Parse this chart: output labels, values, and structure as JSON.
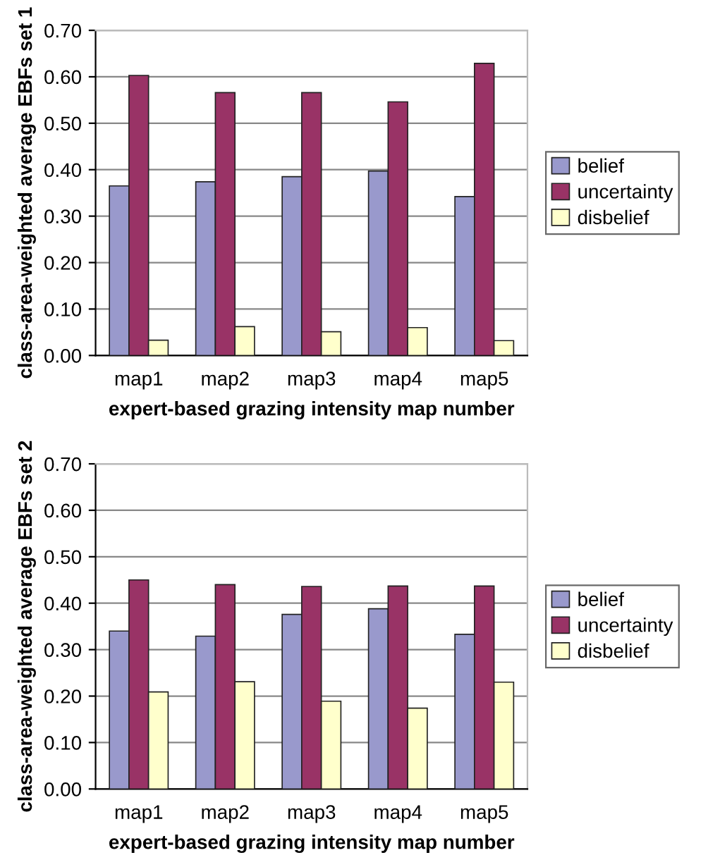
{
  "chart_data": [
    {
      "type": "bar",
      "categories": [
        "map1",
        "map2",
        "map3",
        "map4",
        "map5"
      ],
      "xlabel": "expert-based grazing intensity map number",
      "ylabel": "class-area-weighted average EBFs set 1",
      "ylim": [
        0,
        0.7
      ],
      "yticks": [
        {
          "value": 0,
          "label": "0.00"
        },
        {
          "value": 0.1,
          "label": "0.10"
        },
        {
          "value": 0.2,
          "label": "0.20"
        },
        {
          "value": 0.3,
          "label": "0.30"
        },
        {
          "value": 0.4,
          "label": "0.40"
        },
        {
          "value": 0.5,
          "label": "0.50"
        },
        {
          "value": 0.6,
          "label": "0.60"
        },
        {
          "value": 0.7,
          "label": "0.70"
        }
      ],
      "grid": "y",
      "legend": "right",
      "series": [
        {
          "name": "belief",
          "color": "#9999cc",
          "values": [
            0.365,
            0.374,
            0.385,
            0.397,
            0.342
          ]
        },
        {
          "name": "uncertainty",
          "color": "#993366",
          "values": [
            0.603,
            0.566,
            0.566,
            0.546,
            0.629
          ]
        },
        {
          "name": "disbelief",
          "color": "#ffffcc",
          "values": [
            0.033,
            0.062,
            0.051,
            0.06,
            0.032
          ]
        }
      ]
    },
    {
      "type": "bar",
      "categories": [
        "map1",
        "map2",
        "map3",
        "map4",
        "map5"
      ],
      "xlabel": "expert-based grazing intensity map number",
      "ylabel": "class-area-weighted average EBFs set 2",
      "ylim": [
        0,
        0.7
      ],
      "yticks": [
        {
          "value": 0,
          "label": "0.00"
        },
        {
          "value": 0.1,
          "label": "0.10"
        },
        {
          "value": 0.2,
          "label": "0.20"
        },
        {
          "value": 0.3,
          "label": "0.30"
        },
        {
          "value": 0.4,
          "label": "0.40"
        },
        {
          "value": 0.5,
          "label": "0.50"
        },
        {
          "value": 0.6,
          "label": "0.60"
        },
        {
          "value": 0.7,
          "label": "0.70"
        }
      ],
      "grid": "y",
      "legend": "right",
      "series": [
        {
          "name": "belief",
          "color": "#9999cc",
          "values": [
            0.34,
            0.329,
            0.376,
            0.388,
            0.333
          ]
        },
        {
          "name": "uncertainty",
          "color": "#993366",
          "values": [
            0.45,
            0.44,
            0.436,
            0.437,
            0.437
          ]
        },
        {
          "name": "disbelief",
          "color": "#ffffcc",
          "values": [
            0.209,
            0.231,
            0.189,
            0.174,
            0.23
          ]
        }
      ]
    }
  ]
}
